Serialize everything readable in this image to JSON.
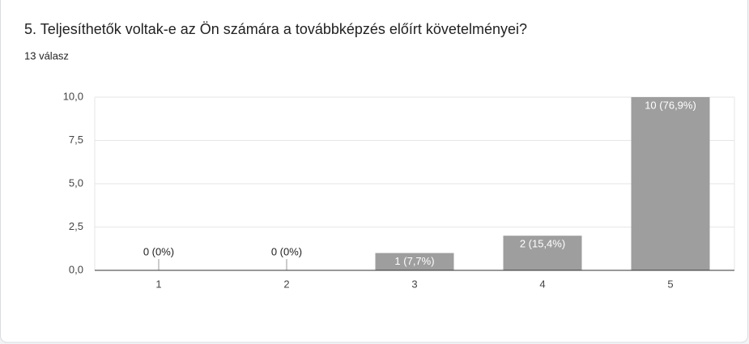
{
  "chart_data": {
    "type": "bar",
    "title": "5. Teljesíthetők voltak-e az Ön számára a továbbképzés előírt követelményei?",
    "subtitle": "13 válasz",
    "categories": [
      "1",
      "2",
      "3",
      "4",
      "5"
    ],
    "values": [
      0,
      0,
      1,
      2,
      10
    ],
    "value_labels": [
      "0 (0%)",
      "0 (0%)",
      "1 (7,7%)",
      "2 (15,4%)",
      "10 (76,9%)"
    ],
    "color": "#9e9e9e",
    "ylim": [
      0,
      10
    ],
    "yticks": [
      {
        "value": 0,
        "label": "0,0"
      },
      {
        "value": 2.5,
        "label": "2,5"
      },
      {
        "value": 5,
        "label": "5,0"
      },
      {
        "value": 7.5,
        "label": "7,5"
      },
      {
        "value": 10,
        "label": "10,0"
      }
    ],
    "grid": true
  }
}
